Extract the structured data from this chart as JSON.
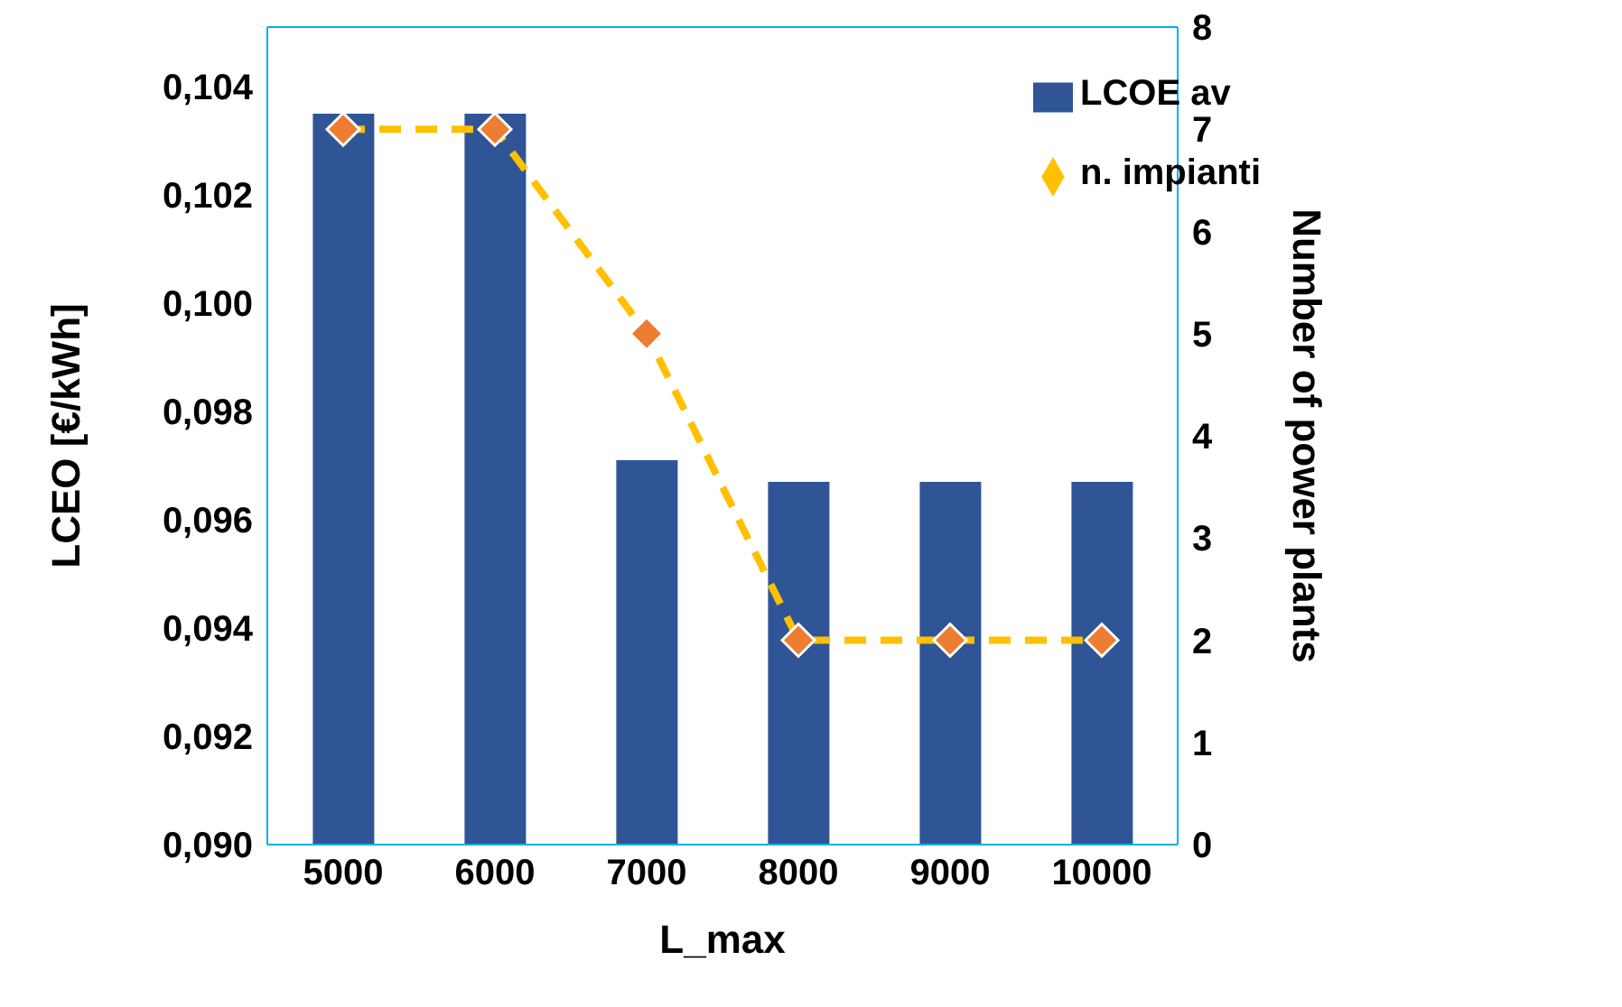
{
  "chart_data": {
    "type": "bar",
    "xlabel": "L_max",
    "ylabel": "LCEO [€/kWh]",
    "y2label": "Number of power plants",
    "categories": [
      "5000",
      "6000",
      "7000",
      "8000",
      "9000",
      "10000"
    ],
    "series": [
      {
        "name": "LCOE av",
        "color": "#2f5597",
        "values": [
          0.1035,
          0.1035,
          0.0971,
          0.0967,
          0.0967,
          0.0967
        ]
      },
      {
        "name": "n. impianti",
        "type": "line",
        "axis": "y2",
        "color": "#ffc000",
        "line_style": "dashed",
        "marker": "diamond",
        "values": [
          7,
          7,
          5,
          2,
          2,
          2
        ]
      }
    ],
    "ylim": [
      0.09,
      0.1051
    ],
    "yticks": [
      {
        "value": 0.09,
        "label": "0,090"
      },
      {
        "value": 0.092,
        "label": "0,092"
      },
      {
        "value": 0.094,
        "label": "0,094"
      },
      {
        "value": 0.096,
        "label": "0,096"
      },
      {
        "value": 0.098,
        "label": "0,098"
      },
      {
        "value": 0.1,
        "label": "0,100"
      },
      {
        "value": 0.102,
        "label": "0,102"
      },
      {
        "value": 0.104,
        "label": "0,104"
      }
    ],
    "y2lim": [
      0,
      8
    ],
    "y2ticks": [
      0,
      1,
      2,
      3,
      4,
      5,
      6,
      7,
      8
    ],
    "legend": "top right"
  }
}
